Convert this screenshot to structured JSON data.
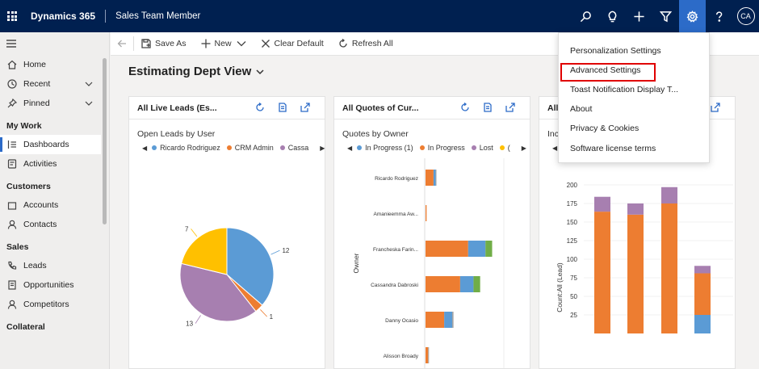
{
  "topbar": {
    "app_title": "Dynamics 365",
    "app_sub": "Sales Team Member",
    "avatar_initials": "CA",
    "icons": [
      "search-icon",
      "lightbulb-icon",
      "plus-icon",
      "filter-icon",
      "gear-icon",
      "help-icon"
    ]
  },
  "sidebar": {
    "items_top": [
      {
        "label": "Home",
        "icon": "home-icon"
      },
      {
        "label": "Recent",
        "icon": "clock-icon",
        "chevron": true
      },
      {
        "label": "Pinned",
        "icon": "pin-icon",
        "chevron": true
      }
    ],
    "section_mywork": "My Work",
    "items_mywork": [
      {
        "label": "Dashboards",
        "icon": "dashboard-icon",
        "selected": true
      },
      {
        "label": "Activities",
        "icon": "activities-icon"
      }
    ],
    "section_customers": "Customers",
    "items_customers": [
      {
        "label": "Accounts",
        "icon": "building-icon"
      },
      {
        "label": "Contacts",
        "icon": "person-icon"
      }
    ],
    "section_sales": "Sales",
    "items_sales": [
      {
        "label": "Leads",
        "icon": "phone-icon"
      },
      {
        "label": "Opportunities",
        "icon": "document-icon"
      },
      {
        "label": "Competitors",
        "icon": "person-icon"
      }
    ],
    "section_collateral": "Collateral"
  },
  "commandbar": {
    "save_as": "Save As",
    "new": "New",
    "clear_default": "Clear Default",
    "refresh_all": "Refresh All"
  },
  "view": {
    "title": "Estimating Dept View"
  },
  "cards": {
    "leads": {
      "title": "All Live Leads (Es...",
      "chart_title": "Open Leads by User",
      "legend": [
        {
          "name": "Ricardo Rodriguez",
          "color": "#5b9bd5"
        },
        {
          "name": "CRM Admin",
          "color": "#ed7d31"
        },
        {
          "name": "Cassa",
          "color": "#a77fb0"
        }
      ]
    },
    "quotes": {
      "title": "All Quotes of Cur...",
      "chart_title": "Quotes by Owner",
      "legend": [
        {
          "name": "In Progress (1)",
          "color": "#5b9bd5"
        },
        {
          "name": "In Progress",
          "color": "#ed7d31"
        },
        {
          "name": "Lost",
          "color": "#a77fb0"
        },
        {
          "name": "(",
          "color": "#ffc000"
        }
      ]
    },
    "third": {
      "title": "All",
      "chart_title": "Inc",
      "legend": [
        {
          "name": "D",
          "color": "#5b9bd5"
        }
      ]
    }
  },
  "chart_data": [
    {
      "type": "pie",
      "title": "Open Leads by User",
      "labels": [
        "Ricardo Rodriguez",
        "CRM Admin",
        "Cassa",
        "(unnamed)"
      ],
      "values": [
        12,
        1,
        13,
        7
      ],
      "colors": [
        "#5b9bd5",
        "#ed7d31",
        "#a77fb0",
        "#ffc000"
      ]
    },
    {
      "type": "bar",
      "orientation": "horizontal",
      "stacked": true,
      "title": "Quotes by Owner",
      "ylabel": "Owner",
      "categories": [
        "Ricardo Rodriguez",
        "Amanieemma Aw...",
        "Francheska Farin...",
        "Cassandra Dabroski",
        "Danny Ocasio",
        "Alisson Broady"
      ],
      "series": [
        {
          "name": "In Progress",
          "color": "#ed7d31",
          "values": [
            3,
            0.4,
            16,
            13,
            7,
            1
          ]
        },
        {
          "name": "In Progress (1)",
          "color": "#5b9bd5",
          "values": [
            0.8,
            0,
            6.5,
            5,
            3,
            0
          ]
        },
        {
          "name": "",
          "color": "#70ad47",
          "values": [
            0,
            0,
            2.5,
            2.5,
            0,
            0
          ]
        },
        {
          "name": "",
          "color": "#a5a5a5",
          "values": [
            0.3,
            0,
            0,
            0,
            0.5,
            0.3
          ]
        }
      ],
      "xmax": 30
    },
    {
      "type": "bar",
      "stacked": true,
      "ylabel": "Count:All (Lead)",
      "ylim": [
        0,
        200
      ],
      "yticks": [
        "200",
        "175",
        "150",
        "125",
        "100",
        "75",
        "50",
        "25"
      ],
      "categories": [
        "",
        "",
        "",
        ""
      ],
      "series": [
        {
          "name": "",
          "color": "#5b9bd5",
          "values": [
            0,
            0,
            0,
            25
          ]
        },
        {
          "name": "",
          "color": "#ed7d31",
          "values": [
            164,
            160,
            175,
            56
          ]
        },
        {
          "name": "",
          "color": "#a77fb0",
          "values": [
            20,
            15,
            22,
            10
          ]
        }
      ]
    }
  ],
  "dropdown": {
    "items": [
      "Personalization Settings",
      "Advanced Settings",
      "Toast Notification Display T...",
      "About",
      "Privacy & Cookies",
      "Software license terms"
    ],
    "highlight_color": "#e00000"
  }
}
